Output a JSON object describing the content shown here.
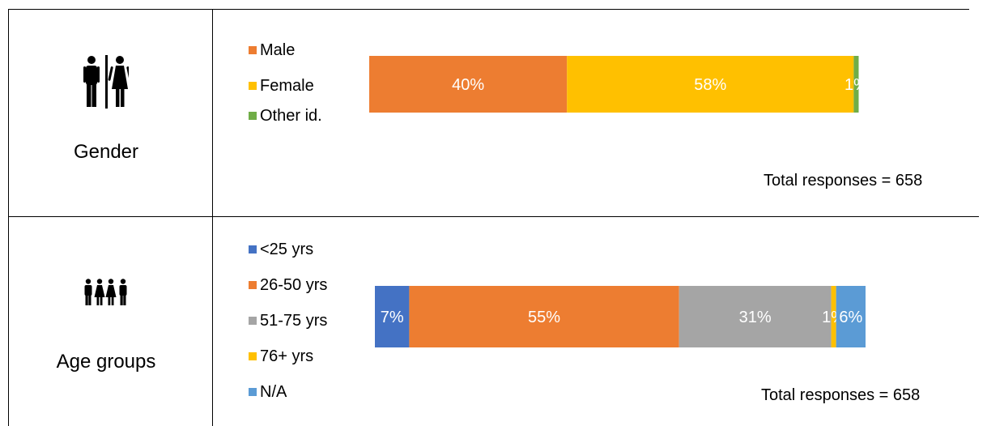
{
  "colors": {
    "male": "#ED7D31",
    "female": "#FFC000",
    "other": "#70AD47",
    "under25": "#4472C4",
    "age26_50": "#ED7D31",
    "age51_75": "#A5A5A5",
    "age76plus": "#FFC000",
    "na": "#5B9BD5"
  },
  "rows": [
    {
      "label": "Gender",
      "icon": "restroom-icon"
    },
    {
      "label": "Age groups",
      "icon": "people-group-icon"
    }
  ],
  "chart_data": [
    {
      "type": "bar",
      "orientation": "horizontal-stacked",
      "categories": [
        "Gender"
      ],
      "series": [
        {
          "name": "Male",
          "values": [
            40
          ],
          "label": "40%"
        },
        {
          "name": "Female",
          "values": [
            58
          ],
          "label": "58%"
        },
        {
          "name": "Other id.",
          "values": [
            1
          ],
          "label": "1%"
        }
      ],
      "legend_position": "left",
      "annotation": "Total responses = 658"
    },
    {
      "type": "bar",
      "orientation": "horizontal-stacked",
      "categories": [
        "Age groups"
      ],
      "series": [
        {
          "name": "<25 yrs",
          "values": [
            7
          ],
          "label": "7%"
        },
        {
          "name": "26-50 yrs",
          "values": [
            55
          ],
          "label": "55%"
        },
        {
          "name": "51-75 yrs",
          "values": [
            31
          ],
          "label": "31%"
        },
        {
          "name": "76+ yrs",
          "values": [
            1
          ],
          "label": "1%"
        },
        {
          "name": "N/A",
          "values": [
            6
          ],
          "label": "6%"
        }
      ],
      "legend_position": "left",
      "annotation": "Total responses = 658"
    }
  ]
}
